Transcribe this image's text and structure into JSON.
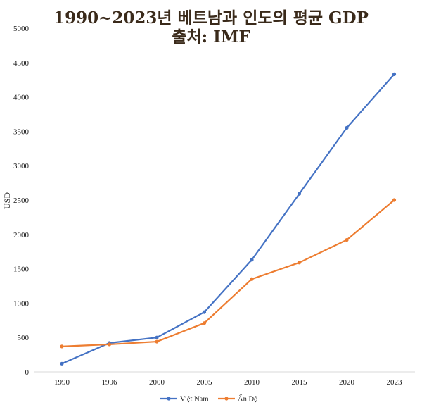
{
  "chart_data": {
    "type": "line",
    "title_line1": "1990~2023년 베트남과 인도의 평균 GDP",
    "title_line2": "출처: IMF",
    "xlabel": "",
    "ylabel": "USD",
    "ylim": [
      0,
      5000
    ],
    "yticks": [
      "0",
      "500",
      "1000",
      "1500",
      "2000",
      "2500",
      "3000",
      "3500",
      "4000",
      "4500",
      "5000"
    ],
    "categories": [
      "1990",
      "1996",
      "2000",
      "2005",
      "2010",
      "2015",
      "2020",
      "2023"
    ],
    "series": [
      {
        "name": "Việt Nam",
        "color": "#4472c4",
        "values": [
          120,
          420,
          500,
          870,
          1630,
          2590,
          3550,
          4330
        ]
      },
      {
        "name": "Ấn Độ",
        "color": "#ed7d31",
        "values": [
          370,
          400,
          440,
          710,
          1350,
          1590,
          1920,
          2500
        ]
      }
    ],
    "grid": false,
    "legend_position": "bottom"
  }
}
